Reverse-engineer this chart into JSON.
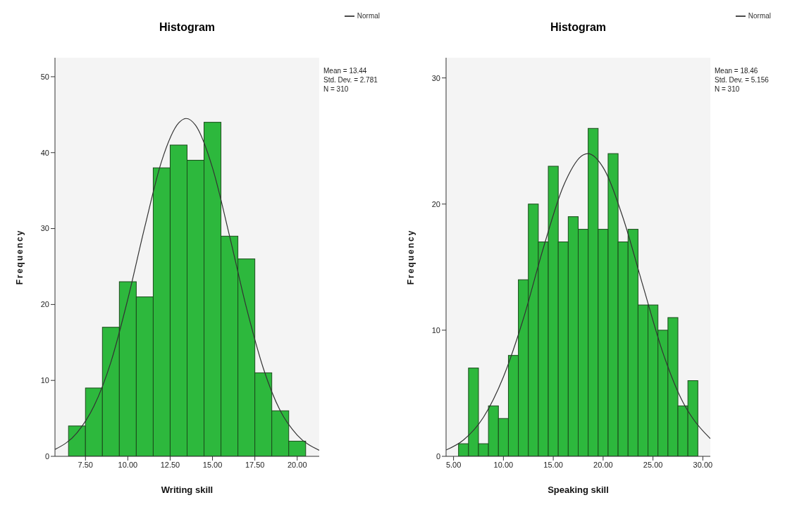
{
  "chart_data": [
    {
      "type": "histogram",
      "title": "Histogram",
      "xlabel": "Writing skill",
      "ylabel": "Frequency",
      "legend": "top right",
      "grid": false,
      "xlim": [
        5.7,
        21.3
      ],
      "xticks": [
        {
          "value": 7.5,
          "label": "7.50"
        },
        {
          "value": 10,
          "label": "10.00"
        },
        {
          "value": 12.5,
          "label": "12.50"
        },
        {
          "value": 15,
          "label": "15.00"
        },
        {
          "value": 17.5,
          "label": "17.50"
        },
        {
          "value": 20,
          "label": "20.00"
        }
      ],
      "ylim": [
        0,
        52.5
      ],
      "yticks": [
        0,
        10,
        20,
        30,
        40,
        50
      ],
      "annotations": [
        "Mean = 13.44",
        "Std. Dev. = 2.781",
        "N = 310"
      ],
      "series": [
        {
          "type": "histogram",
          "color": "#2db83d",
          "bins": [
            6.5,
            7.5,
            8.5,
            9.5,
            10.5,
            11.5,
            12.5,
            13.5,
            14.5,
            15.5,
            16.5,
            17.5,
            18.5,
            19.5,
            20.5
          ],
          "values": [
            4,
            9,
            17,
            23,
            21,
            38,
            41,
            39,
            44,
            29,
            26,
            11,
            6,
            2
          ]
        },
        {
          "type": "line",
          "name": "Normal",
          "color": "#333333",
          "x": [
            5.7,
            7,
            8,
            9,
            10,
            11,
            12,
            13,
            13.44,
            14,
            15,
            16,
            17,
            18,
            19,
            20,
            21.3
          ],
          "values": [
            0.9,
            3.1,
            6.6,
            12.4,
            20.7,
            30.2,
            38.9,
            43.9,
            44.5,
            43.6,
            38,
            29.1,
            19.6,
            11.6,
            6,
            2.8,
            0.8
          ]
        }
      ]
    },
    {
      "type": "histogram",
      "title": "Histogram",
      "xlabel": "Speaking skill",
      "ylabel": "Frequency",
      "legend": "top right",
      "grid": false,
      "xlim": [
        4.25,
        30.75
      ],
      "xticks": [
        {
          "value": 5,
          "label": "5.00"
        },
        {
          "value": 10,
          "label": "10.00"
        },
        {
          "value": 15,
          "label": "15.00"
        },
        {
          "value": 20,
          "label": "20.00"
        },
        {
          "value": 25,
          "label": "25.00"
        },
        {
          "value": 30,
          "label": "30.00"
        }
      ],
      "ylim": [
        0,
        31.6
      ],
      "yticks": [
        0,
        10,
        20,
        30
      ],
      "annotations": [
        "Mean = 18.46",
        "Std. Dev. = 5.156",
        "N = 310"
      ],
      "series": [
        {
          "type": "histogram",
          "color": "#2db83d",
          "bins": [
            5.5,
            6.5,
            7.5,
            8.5,
            9.5,
            10.5,
            11.5,
            12.5,
            13.5,
            14.5,
            15.5,
            16.5,
            17.5,
            18.5,
            19.5,
            20.5,
            21.5,
            22.5,
            23.5,
            24.5,
            25.5,
            26.5,
            27.5,
            28.5,
            29.5
          ],
          "values": [
            1,
            7,
            1,
            4,
            3,
            8,
            14,
            20,
            17,
            23,
            17,
            19,
            18,
            26,
            18,
            24,
            17,
            18,
            12,
            12,
            10,
            11,
            4,
            6
          ]
        },
        {
          "type": "line",
          "name": "Normal",
          "color": "#333333",
          "x": [
            4.25,
            6,
            8,
            10,
            12,
            14,
            16,
            18,
            18.46,
            20,
            22,
            24,
            26,
            28,
            29,
            30.75
          ],
          "values": [
            0.5,
            1.3,
            3.1,
            6.3,
            10.9,
            16.5,
            21.4,
            23.9,
            24,
            22.9,
            18.9,
            13.5,
            8.2,
            4.3,
            3,
            1.4
          ]
        }
      ]
    }
  ]
}
